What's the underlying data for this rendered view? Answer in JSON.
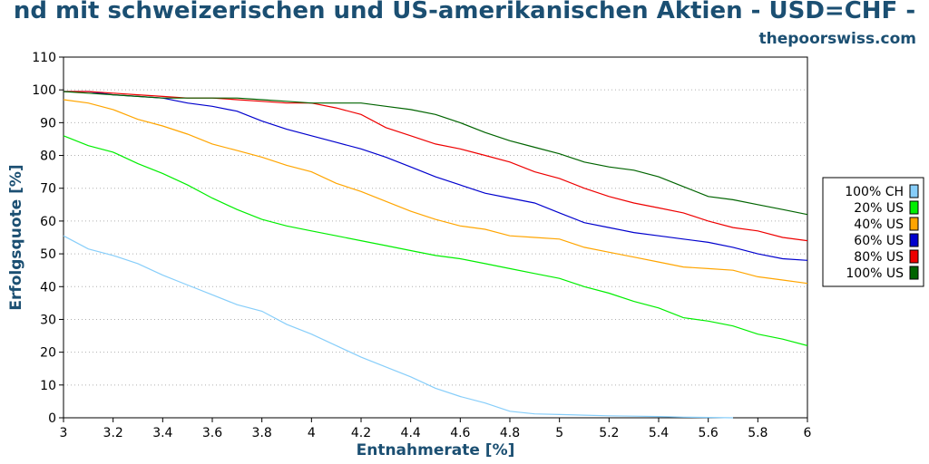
{
  "chart_data": {
    "type": "line",
    "title": "nd mit schweizerischen und US-amerikanischen Aktien - USD=CHF -",
    "subtitle": "thepoorswiss.com",
    "xlabel": "Entnahmerate [%]",
    "ylabel": "Erfolgsquote [%]",
    "xlim": [
      3,
      6
    ],
    "ylim": [
      0,
      110
    ],
    "xticks": [
      "3",
      "3.2",
      "3.4",
      "3.6",
      "3.8",
      "4",
      "4.2",
      "4.4",
      "4.6",
      "4.8",
      "5",
      "5.2",
      "5.4",
      "5.6",
      "5.8",
      "6"
    ],
    "yticks": [
      "0",
      "10",
      "20",
      "30",
      "40",
      "50",
      "60",
      "70",
      "80",
      "90",
      "100",
      "110"
    ],
    "grid": "horizontal dotted",
    "legend_position": "right",
    "x": [
      3.0,
      3.1,
      3.2,
      3.3,
      3.4,
      3.5,
      3.6,
      3.7,
      3.8,
      3.9,
      4.0,
      4.1,
      4.2,
      4.3,
      4.4,
      4.5,
      4.6,
      4.7,
      4.8,
      4.9,
      5.0,
      5.1,
      5.2,
      5.3,
      5.4,
      5.5,
      5.6,
      5.7,
      5.8,
      5.9,
      6.0
    ],
    "series": [
      {
        "name": "100% CH",
        "color": "#87cefa",
        "values": [
          55.5,
          51.5,
          49.5,
          47,
          43.5,
          40.5,
          37.5,
          34.5,
          32.5,
          28.5,
          25.5,
          22,
          18.5,
          15.5,
          12.5,
          9,
          6.5,
          4.5,
          2,
          1.2,
          1,
          0.8,
          0.6,
          0.5,
          0.4,
          0.2,
          0.1,
          0,
          0,
          0,
          0
        ]
      },
      {
        "name": "20% US",
        "color": "#00ee00",
        "values": [
          86,
          83,
          81,
          77.5,
          74.5,
          71,
          67,
          63.5,
          60.5,
          58.5,
          57,
          55.5,
          54,
          52.5,
          51,
          49.5,
          48.5,
          47,
          45.5,
          44,
          42.5,
          40,
          38,
          35.5,
          33.5,
          30.5,
          29.5,
          28,
          25.5,
          24,
          22
        ]
      },
      {
        "name": "40% US",
        "color": "#ffa500",
        "values": [
          97,
          96,
          94,
          91,
          89,
          86.5,
          83.5,
          81.5,
          79.5,
          77,
          75,
          71.5,
          69,
          66,
          63,
          60.5,
          58.5,
          57.5,
          55.5,
          55,
          54.5,
          52,
          50.5,
          49,
          47.5,
          46,
          45.5,
          45,
          43,
          42,
          41
        ]
      },
      {
        "name": "60% US",
        "color": "#0000cd",
        "values": [
          99.5,
          99.5,
          98.5,
          98,
          97.5,
          96,
          95,
          93.5,
          90.5,
          88,
          86,
          84,
          82,
          79.5,
          76.5,
          73.5,
          71,
          68.5,
          67,
          65.5,
          62.5,
          59.5,
          58,
          56.5,
          55.5,
          54.5,
          53.5,
          52,
          50,
          48.5,
          48
        ]
      },
      {
        "name": "80% US",
        "color": "#ee0000",
        "values": [
          99.5,
          99.5,
          99,
          98.5,
          98,
          97.5,
          97.5,
          97,
          96.5,
          96,
          96,
          94.5,
          92.5,
          88.5,
          86,
          83.5,
          82,
          80,
          78,
          75,
          73,
          70,
          67.5,
          65.5,
          64,
          62.5,
          60,
          58,
          57,
          55,
          54
        ]
      },
      {
        "name": "100% US",
        "color": "#006400",
        "values": [
          99.5,
          99,
          98.5,
          98,
          97.5,
          97.5,
          97.5,
          97.5,
          97,
          96.5,
          96,
          96,
          96,
          95,
          94,
          92.5,
          90,
          87,
          84.5,
          82.5,
          80.5,
          78,
          76.5,
          75.5,
          73.5,
          70.5,
          67.5,
          66.5,
          65,
          63.5,
          62
        ]
      }
    ]
  }
}
